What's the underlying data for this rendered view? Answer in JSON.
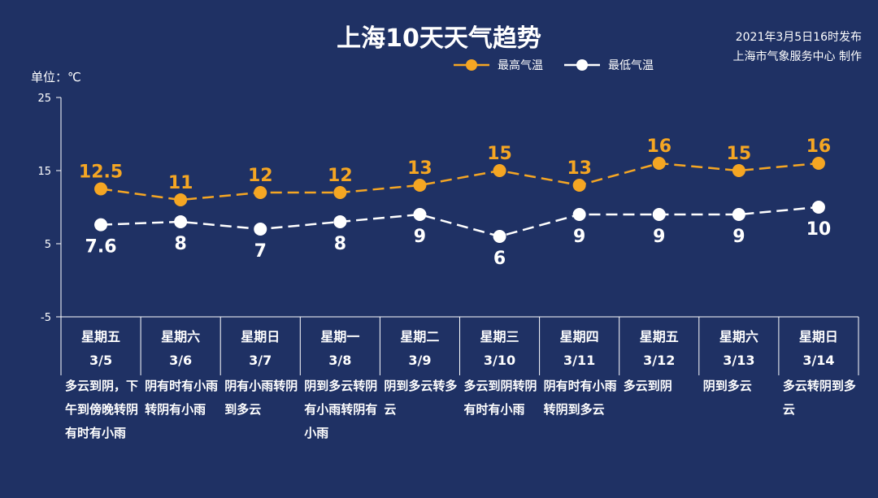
{
  "chart_data": {
    "type": "line",
    "title": "上海10天天气趋势",
    "publish_info": [
      "2021年3月5日16时发布",
      "上海市气象服务中心 制作"
    ],
    "unit_label": "单位：℃",
    "ylim": [
      -5,
      25
    ],
    "yticks": [
      -5,
      5,
      15,
      25
    ],
    "colors": {
      "high": "#f5a623",
      "low": "#ffffff",
      "background": "#1f3164"
    },
    "categories": [
      {
        "weekday": "星期五",
        "date": "3/5",
        "desc": "多云到阴，下午到傍晚转阴有时有小雨"
      },
      {
        "weekday": "星期六",
        "date": "3/6",
        "desc": "阴有时有小雨转阴有小雨"
      },
      {
        "weekday": "星期日",
        "date": "3/7",
        "desc": "阴有小雨转阴到多云"
      },
      {
        "weekday": "星期一",
        "date": "3/8",
        "desc": "阴到多云转阴有小雨转阴有小雨"
      },
      {
        "weekday": "星期二",
        "date": "3/9",
        "desc": "阴到多云转多云"
      },
      {
        "weekday": "星期三",
        "date": "3/10",
        "desc": "多云到阴转阴有时有小雨"
      },
      {
        "weekday": "星期四",
        "date": "3/11",
        "desc": "阴有时有小雨转阴到多云"
      },
      {
        "weekday": "星期五",
        "date": "3/12",
        "desc": "多云到阴"
      },
      {
        "weekday": "星期六",
        "date": "3/13",
        "desc": "阴到多云"
      },
      {
        "weekday": "星期日",
        "date": "3/14",
        "desc": "多云转阴到多云"
      }
    ],
    "series": [
      {
        "name": "最高气温",
        "values": [
          12.5,
          11,
          12,
          12,
          13,
          15,
          13,
          16,
          15,
          16
        ],
        "labels": [
          "12.5",
          "11",
          "12",
          "12",
          "13",
          "15",
          "13",
          "16",
          "15",
          "16"
        ]
      },
      {
        "name": "最低气温",
        "values": [
          7.6,
          8,
          7,
          8,
          9,
          6,
          9,
          9,
          9,
          10
        ],
        "labels": [
          "7.6",
          "8",
          "7",
          "8",
          "9",
          "6",
          "9",
          "9",
          "9",
          "10"
        ]
      }
    ],
    "legend_position": "top-right"
  }
}
